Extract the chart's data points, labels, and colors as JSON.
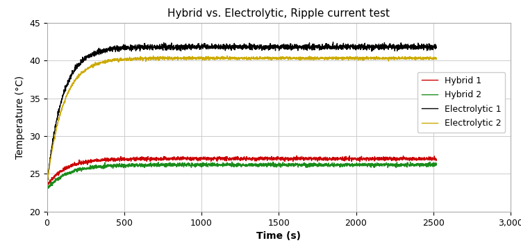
{
  "title": "Hybrid vs. Electrolytic, Ripple current test",
  "xlabel": "Time (s)",
  "ylabel": "Temperature (°C)",
  "xlim": [
    0,
    3000
  ],
  "ylim": [
    20,
    45
  ],
  "xticks": [
    0,
    500,
    1000,
    1500,
    2000,
    2500,
    3000
  ],
  "xtick_labels": [
    "0",
    "500",
    "1000",
    "1500",
    "2000",
    "2500",
    "3,000"
  ],
  "yticks": [
    20,
    25,
    30,
    35,
    40,
    45
  ],
  "series": {
    "Hybrid 1": {
      "color": "#cc0000",
      "start_temp": 23.5,
      "end_temp": 27.0,
      "rise_tau": 120,
      "noise": 0.12
    },
    "Hybrid 2": {
      "color": "#1a8c1a",
      "start_temp": 23.0,
      "end_temp": 26.2,
      "rise_tau": 130,
      "noise": 0.12
    },
    "Electrolytic 1": {
      "color": "#000000",
      "start_temp": 23.5,
      "end_temp": 41.8,
      "rise_tau": 100,
      "noise": 0.18
    },
    "Electrolytic 2": {
      "color": "#ccaa00",
      "start_temp": 23.5,
      "end_temp": 40.3,
      "rise_tau": 105,
      "noise": 0.1
    }
  },
  "legend_order": [
    "Hybrid 1",
    "Hybrid 2",
    "Electrolytic 1",
    "Electrolytic 2"
  ],
  "background_color": "#ffffff",
  "grid_color": "#cccccc",
  "title_fontsize": 11,
  "label_fontsize": 10,
  "tick_fontsize": 9,
  "legend_fontsize": 9,
  "line_width": 1.0,
  "total_time": 2520,
  "num_points": 2520
}
